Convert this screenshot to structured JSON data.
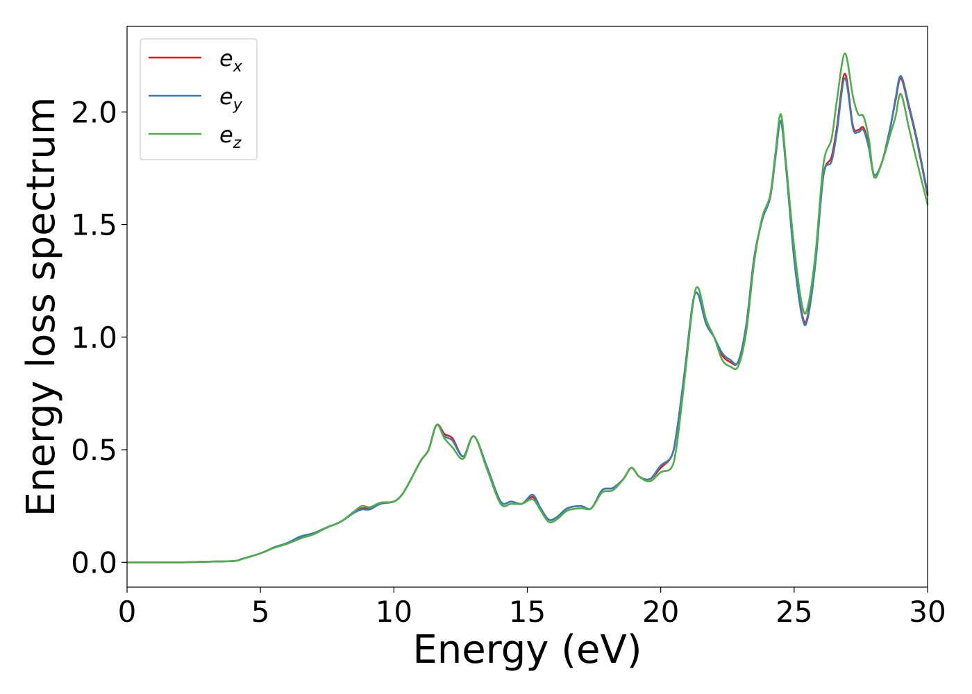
{
  "chart_data": {
    "type": "line",
    "title": "",
    "xlabel": "Energy (eV)",
    "ylabel": "Energy loss spectrum",
    "xlim": [
      0,
      30
    ],
    "ylim": [
      -0.11,
      2.38
    ],
    "xticks": [
      0,
      5,
      10,
      15,
      20,
      25,
      30
    ],
    "xtick_labels": [
      "0",
      "5",
      "10",
      "15",
      "20",
      "25",
      "30"
    ],
    "yticks": [
      0,
      0.5,
      1.0,
      1.5,
      2.0
    ],
    "ytick_labels": [
      "0.0",
      "0.5",
      "1.0",
      "1.5",
      "2.0"
    ],
    "grid": false,
    "legend_position": "top-left",
    "series": [
      {
        "name": "e",
        "subscript": "x",
        "color": "#e41a1c",
        "x": [
          0,
          1,
          2,
          3,
          4,
          4.3,
          5,
          5.5,
          6,
          6.5,
          7,
          7.5,
          8,
          8.5,
          8.8,
          9.1,
          9.5,
          10,
          10.3,
          10.6,
          11,
          11.3,
          11.6,
          11.9,
          12.2,
          12.6,
          13,
          13.5,
          14,
          14.4,
          14.8,
          15.2,
          15.5,
          15.8,
          16.1,
          16.5,
          17,
          17.4,
          17.8,
          18.2,
          18.6,
          18.9,
          19.2,
          19.6,
          20,
          20.4,
          20.6,
          20.9,
          21.2,
          21.4,
          21.7,
          22,
          22.3,
          22.6,
          22.9,
          23.2,
          23.5,
          23.8,
          24.1,
          24.3,
          24.5,
          24.7,
          25,
          25.3,
          25.5,
          25.8,
          26.1,
          26.4,
          26.6,
          26.9,
          27.2,
          27.4,
          27.6,
          27.8,
          28,
          28.3,
          28.6,
          28.8,
          29,
          29.3,
          29.6,
          30
        ],
        "y": [
          0,
          0,
          0,
          0.003,
          0.006,
          0.015,
          0.04,
          0.065,
          0.085,
          0.11,
          0.13,
          0.155,
          0.18,
          0.22,
          0.24,
          0.24,
          0.26,
          0.27,
          0.3,
          0.36,
          0.45,
          0.5,
          0.61,
          0.57,
          0.55,
          0.47,
          0.56,
          0.42,
          0.27,
          0.27,
          0.26,
          0.29,
          0.24,
          0.19,
          0.2,
          0.24,
          0.25,
          0.24,
          0.32,
          0.33,
          0.37,
          0.42,
          0.38,
          0.37,
          0.42,
          0.47,
          0.58,
          0.85,
          1.15,
          1.19,
          1.06,
          1.0,
          0.92,
          0.89,
          0.89,
          1.05,
          1.35,
          1.52,
          1.62,
          1.8,
          1.96,
          1.75,
          1.35,
          1.1,
          1.09,
          1.35,
          1.72,
          1.8,
          1.93,
          2.17,
          1.94,
          1.92,
          1.93,
          1.85,
          1.72,
          1.78,
          1.93,
          2.05,
          2.15,
          2.02,
          1.87,
          1.63
        ]
      },
      {
        "name": "e",
        "subscript": "y",
        "color": "#377eb8",
        "x": [
          0,
          1,
          2,
          3,
          4,
          4.3,
          5,
          5.5,
          6,
          6.5,
          7,
          7.5,
          8,
          8.5,
          8.8,
          9.1,
          9.5,
          10,
          10.3,
          10.6,
          11,
          11.3,
          11.6,
          11.9,
          12.2,
          12.6,
          13,
          13.5,
          14,
          14.4,
          14.8,
          15.2,
          15.5,
          15.8,
          16.1,
          16.5,
          17,
          17.4,
          17.8,
          18.2,
          18.6,
          18.9,
          19.2,
          19.6,
          20,
          20.4,
          20.6,
          20.9,
          21.2,
          21.4,
          21.7,
          22,
          22.3,
          22.6,
          22.9,
          23.2,
          23.5,
          23.8,
          24.1,
          24.3,
          24.5,
          24.7,
          25,
          25.3,
          25.5,
          25.8,
          26.1,
          26.4,
          26.6,
          26.9,
          27.2,
          27.4,
          27.6,
          27.8,
          28,
          28.3,
          28.6,
          28.8,
          29,
          29.3,
          29.6,
          30
        ],
        "y": [
          0,
          0,
          0,
          0.003,
          0.006,
          0.015,
          0.04,
          0.066,
          0.086,
          0.115,
          0.13,
          0.156,
          0.18,
          0.22,
          0.235,
          0.235,
          0.26,
          0.27,
          0.3,
          0.36,
          0.45,
          0.5,
          0.61,
          0.56,
          0.54,
          0.47,
          0.56,
          0.42,
          0.27,
          0.27,
          0.26,
          0.3,
          0.24,
          0.19,
          0.2,
          0.24,
          0.25,
          0.24,
          0.32,
          0.33,
          0.37,
          0.42,
          0.38,
          0.37,
          0.43,
          0.47,
          0.58,
          0.85,
          1.15,
          1.19,
          1.06,
          1.0,
          0.93,
          0.9,
          0.89,
          1.05,
          1.35,
          1.52,
          1.62,
          1.8,
          1.96,
          1.75,
          1.35,
          1.09,
          1.08,
          1.33,
          1.72,
          1.78,
          1.91,
          2.15,
          1.93,
          1.91,
          1.92,
          1.84,
          1.72,
          1.78,
          1.93,
          2.06,
          2.16,
          2.03,
          1.88,
          1.64
        ]
      },
      {
        "name": "e",
        "subscript": "z",
        "color": "#4daf4a",
        "x": [
          0,
          1,
          2,
          3,
          4,
          4.3,
          5,
          5.5,
          6,
          6.5,
          7,
          7.5,
          8,
          8.5,
          8.8,
          9.1,
          9.5,
          10,
          10.3,
          10.6,
          11,
          11.3,
          11.6,
          11.9,
          12.2,
          12.6,
          13,
          13.5,
          14,
          14.4,
          14.8,
          15.2,
          15.5,
          15.8,
          16.1,
          16.5,
          17,
          17.4,
          17.8,
          18.2,
          18.6,
          18.9,
          19.2,
          19.6,
          20,
          20.4,
          20.6,
          20.9,
          21.2,
          21.4,
          21.7,
          22,
          22.3,
          22.6,
          22.9,
          23.2,
          23.5,
          23.8,
          24.1,
          24.3,
          24.5,
          24.7,
          25,
          25.3,
          25.5,
          25.8,
          26.1,
          26.4,
          26.6,
          26.9,
          27.2,
          27.4,
          27.6,
          27.8,
          28,
          28.3,
          28.6,
          28.8,
          29,
          29.3,
          29.6,
          30
        ],
        "y": [
          0,
          0,
          0,
          0.003,
          0.006,
          0.014,
          0.04,
          0.064,
          0.082,
          0.106,
          0.125,
          0.155,
          0.18,
          0.225,
          0.25,
          0.245,
          0.265,
          0.27,
          0.3,
          0.36,
          0.45,
          0.5,
          0.61,
          0.55,
          0.51,
          0.46,
          0.56,
          0.41,
          0.26,
          0.26,
          0.26,
          0.28,
          0.23,
          0.18,
          0.19,
          0.23,
          0.24,
          0.24,
          0.31,
          0.32,
          0.37,
          0.42,
          0.38,
          0.36,
          0.4,
          0.42,
          0.52,
          0.82,
          1.14,
          1.22,
          1.08,
          1.0,
          0.9,
          0.87,
          0.87,
          1.02,
          1.33,
          1.53,
          1.63,
          1.82,
          1.99,
          1.77,
          1.4,
          1.14,
          1.13,
          1.37,
          1.77,
          1.88,
          2.05,
          2.26,
          2.07,
          1.99,
          1.98,
          1.88,
          1.71,
          1.78,
          1.9,
          1.98,
          2.08,
          1.93,
          1.78,
          1.59
        ]
      }
    ]
  }
}
